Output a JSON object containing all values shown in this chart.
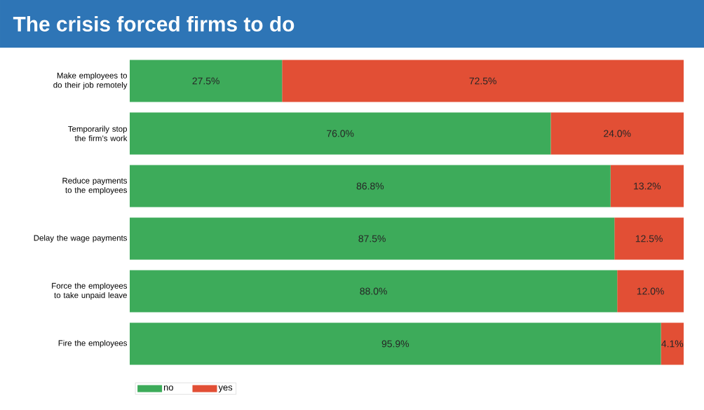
{
  "chart_data": {
    "type": "bar",
    "orientation": "horizontal",
    "stacked": true,
    "title": "The crisis forced firms to do",
    "categories": [
      "Make employees to do their job remotely",
      "Temporarily stop the firm’s work",
      "Reduce payments to the employees",
      "Delay the wage payments",
      "Force the employees to take unpaid leave",
      "Fire the employees"
    ],
    "series": [
      {
        "name": "no",
        "color": "#3dab5a",
        "values": [
          27.5,
          76.0,
          86.8,
          87.5,
          88.0,
          95.9
        ],
        "value_labels": [
          "27.5%",
          "76.0%",
          "86.8%",
          "87.5%",
          "88.0%",
          "95.9%"
        ]
      },
      {
        "name": "yes",
        "color": "#e24f35",
        "values": [
          72.5,
          24.0,
          13.2,
          12.5,
          12.0,
          4.1
        ],
        "value_labels": [
          "72.5%",
          "24.0%",
          "13.2%",
          "12.5%",
          "12.0%",
          "4.1%"
        ]
      }
    ],
    "xlim": [
      0,
      100
    ],
    "tick_labels": "y",
    "legend": "bottom"
  }
}
